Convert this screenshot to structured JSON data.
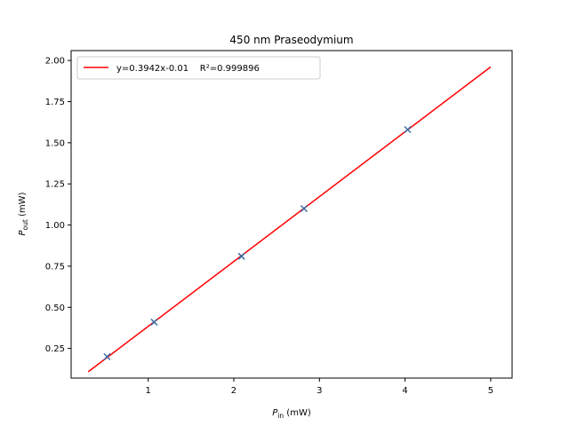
{
  "chart_data": {
    "type": "scatter",
    "title": "450 nm Praseodymium",
    "xlabel": {
      "main": "P",
      "sub": "in",
      "unit": " (mW)"
    },
    "ylabel": {
      "main": "P",
      "sub": "out",
      "unit": " (mW)"
    },
    "xlim": [
      0.1,
      5.25
    ],
    "ylim": [
      0.07,
      2.06
    ],
    "xticks": [
      1,
      2,
      3,
      4,
      5
    ],
    "yticks": [
      0.25,
      0.5,
      0.75,
      1.0,
      1.25,
      1.5,
      1.75,
      2.0
    ],
    "ytick_labels": [
      "0.25",
      "0.50",
      "0.75",
      "1.00",
      "1.25",
      "1.50",
      "1.75",
      "2.00"
    ],
    "grid": false,
    "legend_position": "top-left",
    "series": [
      {
        "kind": "points",
        "marker": "x",
        "color": "#3b6ea5",
        "x": [
          0.52,
          1.07,
          2.09,
          2.82,
          4.03
        ],
        "y": [
          0.2,
          0.41,
          0.81,
          1.1,
          1.58
        ]
      },
      {
        "kind": "fit-line",
        "name": "y=0.3942x-0.01    R²=0.999896",
        "color": "#ff0000",
        "slope": 0.3942,
        "intercept": -0.01,
        "x_range": [
          0.3,
          5.0
        ]
      }
    ]
  }
}
